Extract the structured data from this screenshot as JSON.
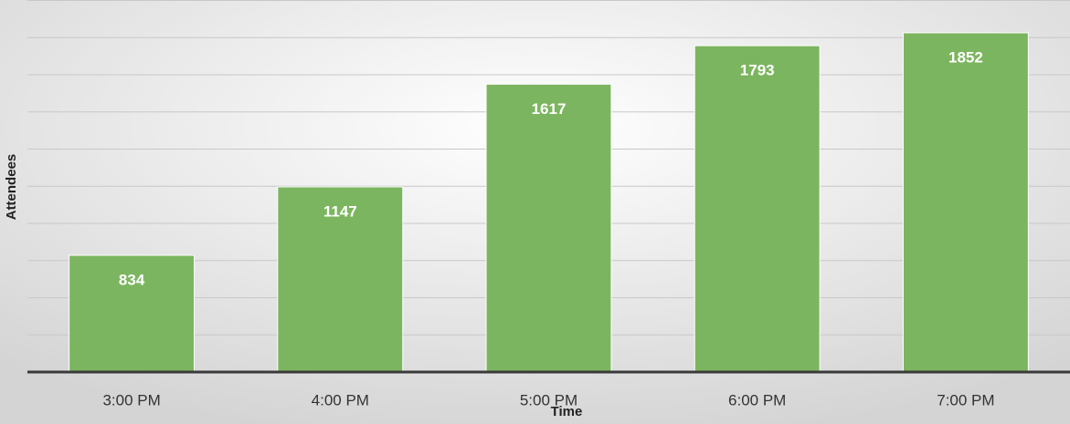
{
  "chart_data": {
    "type": "bar",
    "x_label": "Time",
    "y_label": "Attendees",
    "categories": [
      "3:00 PM",
      "4:00 PM",
      "5:00 PM",
      "6:00 PM",
      "7:00 PM"
    ],
    "values": [
      834,
      1147,
      1617,
      1793,
      1852
    ],
    "color": "#7cb55f",
    "ylim": [
      300,
      2000
    ],
    "yticks": [
      300,
      470,
      640,
      810,
      980,
      1150,
      1320,
      1490,
      1660,
      1830,
      2000
    ],
    "grid": true
  }
}
